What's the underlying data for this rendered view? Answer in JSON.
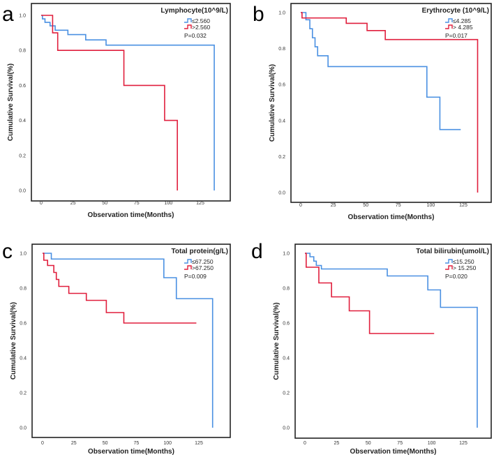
{
  "chart_data": [
    {
      "type": "line",
      "subtype": "kaplan-meier step",
      "panel": "a",
      "title": "Lymphocyte(10^9/L)",
      "xlabel": "Observation time(Months)",
      "ylabel": "Cumulative Survival(%)",
      "xlim": [
        0,
        150
      ],
      "ylim": [
        0,
        1.0
      ],
      "xticks": [
        "0",
        "25",
        "50",
        "75",
        "100",
        "125"
      ],
      "yticks": [
        "0.0",
        "0.2",
        "0.4",
        "0.6",
        "0.8",
        "1.0"
      ],
      "p_value": "P=0.032",
      "legend_position": "top-right",
      "series": [
        {
          "name": "≤2.560",
          "color": "#4a90e2",
          "steps": [
            [
              0,
              1
            ],
            [
              1,
              0.98
            ],
            [
              3,
              0.96
            ],
            [
              7,
              0.94
            ],
            [
              11,
              0.915
            ],
            [
              21,
              0.89
            ],
            [
              35,
              0.86
            ],
            [
              51,
              0.83
            ],
            [
              136,
              0
            ]
          ],
          "end": 136
        },
        {
          "name": ">2.560",
          "color": "#e01e3c",
          "steps": [
            [
              0,
              1
            ],
            [
              9,
              0.9
            ],
            [
              13,
              0.8
            ],
            [
              65,
              0.6
            ],
            [
              97,
              0.4
            ],
            [
              107,
              0
            ]
          ],
          "end": 107
        }
      ]
    },
    {
      "type": "line",
      "subtype": "kaplan-meier step",
      "panel": "b",
      "title": "Erythrocyte (10^9/L)",
      "xlabel": "Observation time(Months)",
      "ylabel": "Cumulative Survival(%)",
      "xlim": [
        0,
        150
      ],
      "ylim": [
        0,
        1.0
      ],
      "xticks": [
        "0",
        "25",
        "50",
        "75",
        "100",
        "125"
      ],
      "yticks": [
        "0.0",
        "0.2",
        "0.4",
        "0.6",
        "0.8",
        "1.0"
      ],
      "p_value": "P=0.017",
      "legend_position": "top-right",
      "series": [
        {
          "name": "≤4.285",
          "color": "#4a90e2",
          "steps": [
            [
              0,
              1
            ],
            [
              4,
              0.96
            ],
            [
              7,
              0.91
            ],
            [
              9,
              0.86
            ],
            [
              11,
              0.81
            ],
            [
              13,
              0.76
            ],
            [
              21,
              0.7
            ],
            [
              97,
              0.53
            ],
            [
              107,
              0.35
            ]
          ],
          "end": 123
        },
        {
          "name": "> 4.285",
          "color": "#e01e3c",
          "steps": [
            [
              0,
              1
            ],
            [
              1,
              0.97
            ],
            [
              35,
              0.94
            ],
            [
              51,
              0.9
            ],
            [
              65,
              0.85
            ],
            [
              136,
              0
            ]
          ],
          "end": 136
        }
      ]
    },
    {
      "type": "line",
      "subtype": "kaplan-meier step",
      "panel": "c",
      "title": "Total protein(g/L)",
      "xlabel": "Observation time(Months)",
      "ylabel": "Cumulative Survival(%)",
      "xlim": [
        0,
        150
      ],
      "ylim": [
        0,
        1.0
      ],
      "xticks": [
        "0",
        "25",
        "50",
        "75",
        "100",
        "125"
      ],
      "yticks": [
        "0.0",
        "0.2",
        "0.4",
        "0.6",
        "0.8",
        "1.0"
      ],
      "p_value": "P=0.009",
      "legend_position": "top-right",
      "series": [
        {
          "name": "≤67.250",
          "color": "#4a90e2",
          "steps": [
            [
              0,
              1
            ],
            [
              7,
              0.967
            ],
            [
              97,
              0.86
            ],
            [
              107,
              0.74
            ],
            [
              136,
              0
            ]
          ],
          "end": 136
        },
        {
          "name": ">67.250",
          "color": "#e01e3c",
          "steps": [
            [
              0,
              1
            ],
            [
              1,
              0.96
            ],
            [
              4,
              0.93
            ],
            [
              9,
              0.89
            ],
            [
              11,
              0.85
            ],
            [
              13,
              0.81
            ],
            [
              21,
              0.77
            ],
            [
              35,
              0.73
            ],
            [
              51,
              0.66
            ],
            [
              65,
              0.6
            ]
          ],
          "end": 123
        }
      ]
    },
    {
      "type": "line",
      "subtype": "kaplan-meier step",
      "panel": "d",
      "title": "Total bilirubin(umol/L)",
      "xlabel": "Observation time(Months)",
      "ylabel": "Cumulative Survival(%)",
      "xlim": [
        0,
        150
      ],
      "ylim": [
        0,
        1.0
      ],
      "xticks": [
        "0",
        "25",
        "50",
        "75",
        "100",
        "125"
      ],
      "yticks": [
        "0.0",
        "0.2",
        "0.4",
        "0.6",
        "0.8",
        "1.0"
      ],
      "p_value": "P=0.020",
      "legend_position": "top-right",
      "series": [
        {
          "name": "≤15.250",
          "color": "#4a90e2",
          "steps": [
            [
              0,
              1
            ],
            [
              4,
              0.98
            ],
            [
              7,
              0.955
            ],
            [
              9,
              0.93
            ],
            [
              13,
              0.91
            ],
            [
              65,
              0.87
            ],
            [
              97,
              0.79
            ],
            [
              107,
              0.69
            ],
            [
              136,
              0
            ]
          ],
          "end": 136
        },
        {
          "name": "> 15.250",
          "color": "#e01e3c",
          "steps": [
            [
              0,
              1
            ],
            [
              1,
              0.92
            ],
            [
              11,
              0.83
            ],
            [
              21,
              0.75
            ],
            [
              35,
              0.67
            ],
            [
              51,
              0.54
            ]
          ],
          "end": 102
        }
      ]
    }
  ]
}
